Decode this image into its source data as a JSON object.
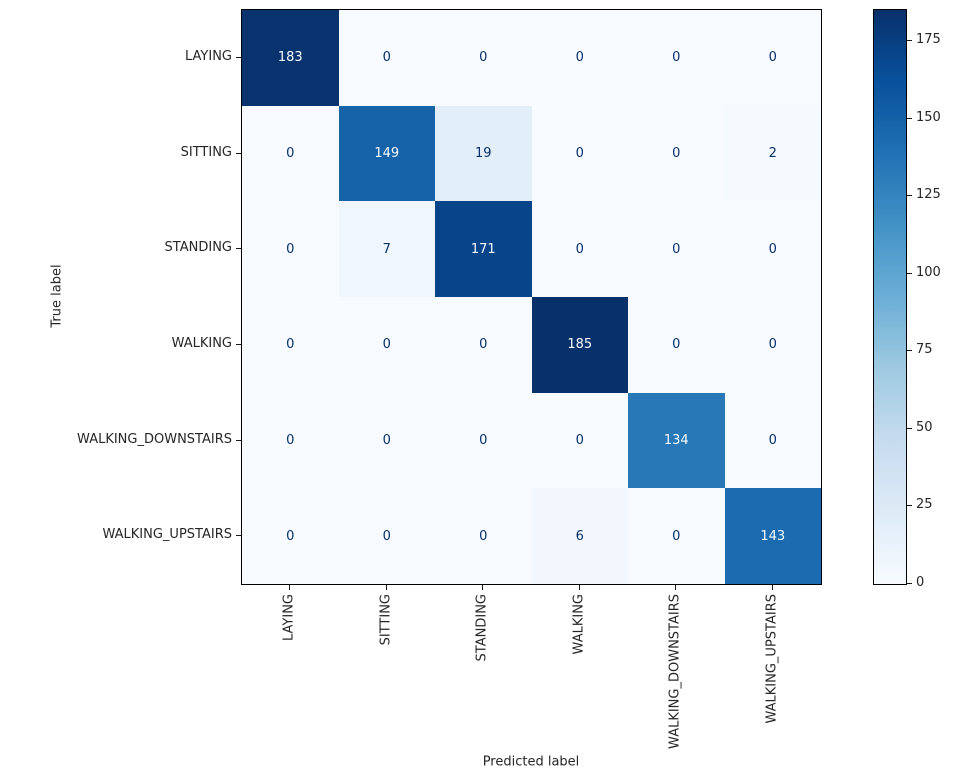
{
  "chart_data": {
    "type": "heatmap",
    "title": "",
    "xlabel": "Predicted label",
    "ylabel": "True label",
    "categories": [
      "LAYING",
      "SITTING",
      "STANDING",
      "WALKING",
      "WALKING_DOWNSTAIRS",
      "WALKING_UPSTAIRS"
    ],
    "matrix": [
      [
        183,
        0,
        0,
        0,
        0,
        0
      ],
      [
        0,
        149,
        19,
        0,
        0,
        2
      ],
      [
        0,
        7,
        171,
        0,
        0,
        0
      ],
      [
        0,
        0,
        0,
        185,
        0,
        0
      ],
      [
        0,
        0,
        0,
        0,
        134,
        0
      ],
      [
        0,
        0,
        0,
        6,
        0,
        143
      ]
    ],
    "vmin": 0,
    "vmax": 185,
    "colormap": "Blues",
    "colormap_stops": [
      "#f7fbff",
      "#deebf7",
      "#c6dbef",
      "#9ecae1",
      "#6baed6",
      "#4292c6",
      "#2171b5",
      "#08519c",
      "#08306b"
    ],
    "text_color_light": "#f7fbff",
    "text_color_dark": "#08306b",
    "colorbar_ticks": [
      0,
      25,
      50,
      75,
      100,
      125,
      150,
      175
    ],
    "legend_position": "right-colorbar",
    "grid": false,
    "axis_color": "#000000"
  }
}
